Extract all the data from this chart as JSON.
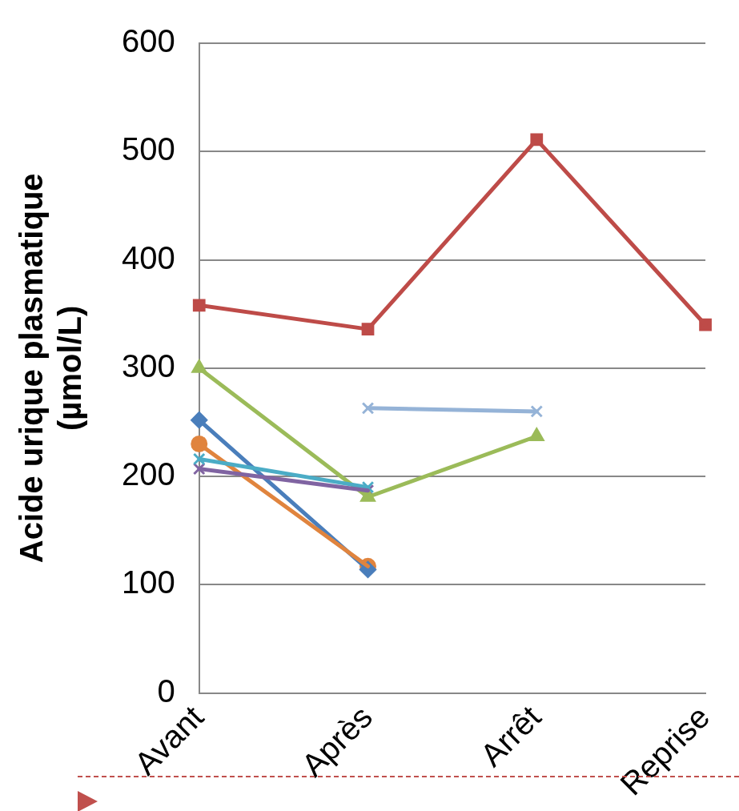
{
  "chart_data": {
    "type": "line",
    "ylabel": "Acide urique plasmatique (µmol/L)",
    "categories": [
      "Avant",
      "Après",
      "Arrêt",
      "Reprise"
    ],
    "ylim": [
      0,
      600
    ],
    "yticks": [
      0,
      100,
      200,
      300,
      400,
      500,
      600
    ],
    "grid": "y",
    "legend": false,
    "series": [
      {
        "color": "#be4b48",
        "marker": "square",
        "values": [
          358,
          336,
          511,
          340
        ]
      },
      {
        "color": "#9bbb59",
        "marker": "triangle",
        "values": [
          300,
          181,
          237,
          null
        ]
      },
      {
        "color": "#95b3d7",
        "marker": "cross",
        "values": [
          null,
          263,
          260,
          null
        ]
      },
      {
        "color": "#4a7ebb",
        "marker": "diamond",
        "values": [
          252,
          114,
          null,
          null
        ]
      },
      {
        "color": "#e0843e",
        "marker": "circle",
        "values": [
          230,
          117,
          null,
          null
        ]
      },
      {
        "color": "#4bacc6",
        "marker": "cross",
        "values": [
          216,
          190,
          null,
          null
        ]
      },
      {
        "color": "#8064a2",
        "marker": "cross",
        "values": [
          207,
          187,
          null,
          null
        ]
      }
    ]
  }
}
